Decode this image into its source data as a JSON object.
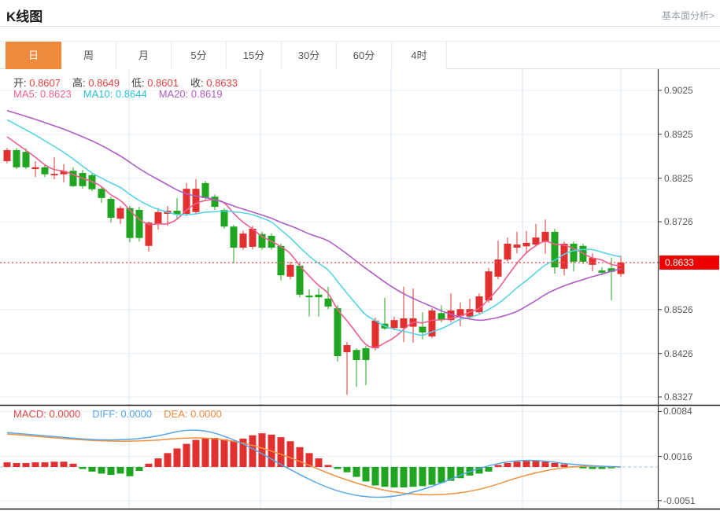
{
  "header": {
    "title": "K线图",
    "link": "基本面分析>"
  },
  "tabs": {
    "items": [
      {
        "label": "日",
        "selected": true
      },
      {
        "label": "周",
        "selected": false
      },
      {
        "label": "月",
        "selected": false
      },
      {
        "label": "5分",
        "selected": false
      },
      {
        "label": "15分",
        "selected": false
      },
      {
        "label": "30分",
        "selected": false
      },
      {
        "label": "60分",
        "selected": false
      },
      {
        "label": "4时",
        "selected": false
      }
    ]
  },
  "legend": {
    "ohlc": [
      {
        "label": "开:",
        "value": "0.8607"
      },
      {
        "label": "高:",
        "value": "0.8649"
      },
      {
        "label": "低:",
        "value": "0.8601"
      },
      {
        "label": "收:",
        "value": "0.8633"
      }
    ],
    "ma": [
      {
        "label": "MA5:",
        "value": "0.8623",
        "color": "#ee5f8e"
      },
      {
        "label": "MA10:",
        "value": "0.8644",
        "color": "#2cc3d5"
      },
      {
        "label": "MA20:",
        "value": "0.8619",
        "color": "#b05cc6"
      }
    ],
    "macd": [
      {
        "label": "MACD:",
        "value": "0.0000",
        "color": "#e64545"
      },
      {
        "label": "DIFF:",
        "value": "0.0000",
        "color": "#58a6e8"
      },
      {
        "label": "DEA:",
        "value": "0.0000",
        "color": "#f28a3c"
      }
    ]
  },
  "colors": {
    "up": "#e03030",
    "down": "#1fa51f",
    "ma5": "#ee5f8e",
    "ma10": "#56d4e4",
    "ma20": "#b05cc6",
    "diff": "#58a6e8",
    "dea": "#f2923e",
    "grid_h": "#e7eef6",
    "grid_v": "#d9e4ef",
    "axis": "#3a3a3a",
    "panel_border": "#1a1a1a",
    "price_line": "#f55b5b",
    "zero_line": "#9cc8ea",
    "tag_bg": "#ee0000",
    "tab_selected_bg": "#ef8a3d"
  },
  "chart_data": {
    "type": "candlestick",
    "main": {
      "y_ticks": [
        "0.9025",
        "0.8925",
        "0.8825",
        "0.8726",
        "0.8633",
        "0.8526",
        "0.8426",
        "0.8327"
      ],
      "current_price": "0.8633",
      "axis_range": {
        "top_value": 0.9025,
        "bottom_value": 0.8327
      },
      "ma_windows": [
        5,
        10,
        20
      ],
      "ma_left_edge": {
        "ma5": 0.8927,
        "ma10": 0.8966,
        "ma20": 0.8984
      },
      "candles_ohlc": [
        [
          0.8864,
          0.8894,
          0.8859,
          0.8889
        ],
        [
          0.8889,
          0.8894,
          0.8846,
          0.885
        ],
        [
          0.8885,
          0.8893,
          0.8846,
          0.885
        ],
        [
          0.8846,
          0.8864,
          0.8828,
          0.885
        ],
        [
          0.885,
          0.8855,
          0.8828,
          0.8834
        ],
        [
          0.8832,
          0.8873,
          0.8823,
          0.8835
        ],
        [
          0.8834,
          0.8857,
          0.8816,
          0.8841
        ],
        [
          0.8842,
          0.885,
          0.8805,
          0.8807
        ],
        [
          0.8837,
          0.8844,
          0.8801,
          0.8807
        ],
        [
          0.8832,
          0.8837,
          0.8796,
          0.88
        ],
        [
          0.8801,
          0.8806,
          0.8769,
          0.878
        ],
        [
          0.8778,
          0.8783,
          0.8724,
          0.8735
        ],
        [
          0.8733,
          0.8762,
          0.8721,
          0.8757
        ],
        [
          0.8757,
          0.8762,
          0.8679,
          0.8689
        ],
        [
          0.8753,
          0.876,
          0.8681,
          0.8689
        ],
        [
          0.8671,
          0.8726,
          0.8658,
          0.8724
        ],
        [
          0.8721,
          0.8757,
          0.8708,
          0.8748
        ],
        [
          0.8744,
          0.8762,
          0.8717,
          0.8751
        ],
        [
          0.8751,
          0.878,
          0.8733,
          0.8742
        ],
        [
          0.8744,
          0.8814,
          0.8739,
          0.8801
        ],
        [
          0.8748,
          0.8823,
          0.8744,
          0.8801
        ],
        [
          0.8814,
          0.8819,
          0.8774,
          0.878
        ],
        [
          0.8783,
          0.8788,
          0.8753,
          0.876
        ],
        [
          0.8753,
          0.8757,
          0.871,
          0.8715
        ],
        [
          0.8715,
          0.8719,
          0.8631,
          0.8667
        ],
        [
          0.8667,
          0.8706,
          0.8662,
          0.8699
        ],
        [
          0.8669,
          0.8717,
          0.8663,
          0.871
        ],
        [
          0.8698,
          0.8703,
          0.8662,
          0.8667
        ],
        [
          0.8694,
          0.8699,
          0.8662,
          0.8667
        ],
        [
          0.8671,
          0.8676,
          0.8592,
          0.8604
        ],
        [
          0.8601,
          0.8635,
          0.8595,
          0.8628
        ],
        [
          0.8626,
          0.8631,
          0.8554,
          0.856
        ],
        [
          0.8558,
          0.8572,
          0.851,
          0.8554
        ],
        [
          0.856,
          0.8574,
          0.851,
          0.8554
        ],
        [
          0.8551,
          0.8578,
          0.8527,
          0.8533
        ],
        [
          0.8529,
          0.8536,
          0.8408,
          0.842
        ],
        [
          0.8429,
          0.8452,
          0.8332,
          0.8445
        ],
        [
          0.8434,
          0.8438,
          0.835,
          0.8411
        ],
        [
          0.8438,
          0.8443,
          0.8354,
          0.8411
        ],
        [
          0.8438,
          0.8508,
          0.8433,
          0.8501
        ],
        [
          0.8494,
          0.8553,
          0.848,
          0.8483
        ],
        [
          0.8484,
          0.851,
          0.8479,
          0.8502
        ],
        [
          0.8484,
          0.8578,
          0.8452,
          0.8506
        ],
        [
          0.8487,
          0.8574,
          0.8451,
          0.8506
        ],
        [
          0.8487,
          0.852,
          0.8458,
          0.8474
        ],
        [
          0.8465,
          0.8529,
          0.8461,
          0.8524
        ],
        [
          0.8518,
          0.8536,
          0.8497,
          0.8502
        ],
        [
          0.8502,
          0.8563,
          0.8497,
          0.8524
        ],
        [
          0.8511,
          0.8542,
          0.8488,
          0.8527
        ],
        [
          0.851,
          0.8551,
          0.8506,
          0.8527
        ],
        [
          0.852,
          0.8563,
          0.8515,
          0.8556
        ],
        [
          0.8547,
          0.8621,
          0.8542,
          0.8613
        ],
        [
          0.8601,
          0.8683,
          0.8595,
          0.864
        ],
        [
          0.864,
          0.869,
          0.8635,
          0.8676
        ],
        [
          0.8667,
          0.8703,
          0.8654,
          0.8674
        ],
        [
          0.867,
          0.8705,
          0.8653,
          0.8678
        ],
        [
          0.8674,
          0.8721,
          0.8671,
          0.869
        ],
        [
          0.8681,
          0.8731,
          0.8653,
          0.8703
        ],
        [
          0.8703,
          0.871,
          0.8608,
          0.8622
        ],
        [
          0.8619,
          0.8681,
          0.8604,
          0.8676
        ],
        [
          0.8676,
          0.8681,
          0.8613,
          0.8635
        ],
        [
          0.8671,
          0.8676,
          0.863,
          0.8635
        ],
        [
          0.8628,
          0.8654,
          0.8613,
          0.8644
        ],
        [
          0.8615,
          0.8622,
          0.8604,
          0.861
        ],
        [
          0.862,
          0.8644,
          0.8547,
          0.8612
        ],
        [
          0.8607,
          0.8649,
          0.8601,
          0.8633
        ]
      ]
    },
    "macd": {
      "y_ticks": [
        "0.0084",
        "0.0016",
        "-0.0051"
      ],
      "axis_range": {
        "top_value": 0.0084,
        "bottom_value": -0.0051
      },
      "histogram": [
        0.0007,
        0.0006,
        0.0006,
        0.0007,
        0.0007,
        0.0008,
        0.0008,
        0.0005,
        -0.0003,
        -0.0007,
        -0.001,
        -0.0012,
        -0.001,
        -0.0014,
        -0.0006,
        0.0005,
        0.0013,
        0.0021,
        0.0028,
        0.0035,
        0.0041,
        0.0044,
        0.0044,
        0.0042,
        0.004,
        0.0043,
        0.0048,
        0.0051,
        0.0049,
        0.0045,
        0.0039,
        0.003,
        0.0021,
        0.0013,
        0.0003,
        -0.0003,
        -0.0008,
        -0.0015,
        -0.0022,
        -0.0028,
        -0.003,
        -0.0031,
        -0.0031,
        -0.003,
        -0.0029,
        -0.0027,
        -0.0024,
        -0.0021,
        -0.0017,
        -0.0013,
        -0.001,
        -0.0007,
        0.0003,
        0.0006,
        0.0008,
        0.0009,
        0.0009,
        0.0008,
        0.0006,
        0.0004,
        0.0001,
        -0.0002,
        -0.0003,
        -0.0003,
        -0.0002,
        0.0
      ],
      "diff_sampled_every_5": [
        0.0052,
        0.0046,
        0.004,
        0.0043,
        0.0061,
        0.0037,
        -0.0005,
        -0.0039,
        -0.0049,
        -0.0031,
        0.0,
        0.0013,
        0.0003,
        0.0
      ],
      "dea_sampled_every_5": [
        0.005,
        0.0044,
        0.0039,
        0.0039,
        0.0046,
        0.0038,
        0.0015,
        -0.0016,
        -0.0037,
        -0.0044,
        -0.0036,
        -0.0011,
        0.0002,
        0.0
      ]
    }
  }
}
